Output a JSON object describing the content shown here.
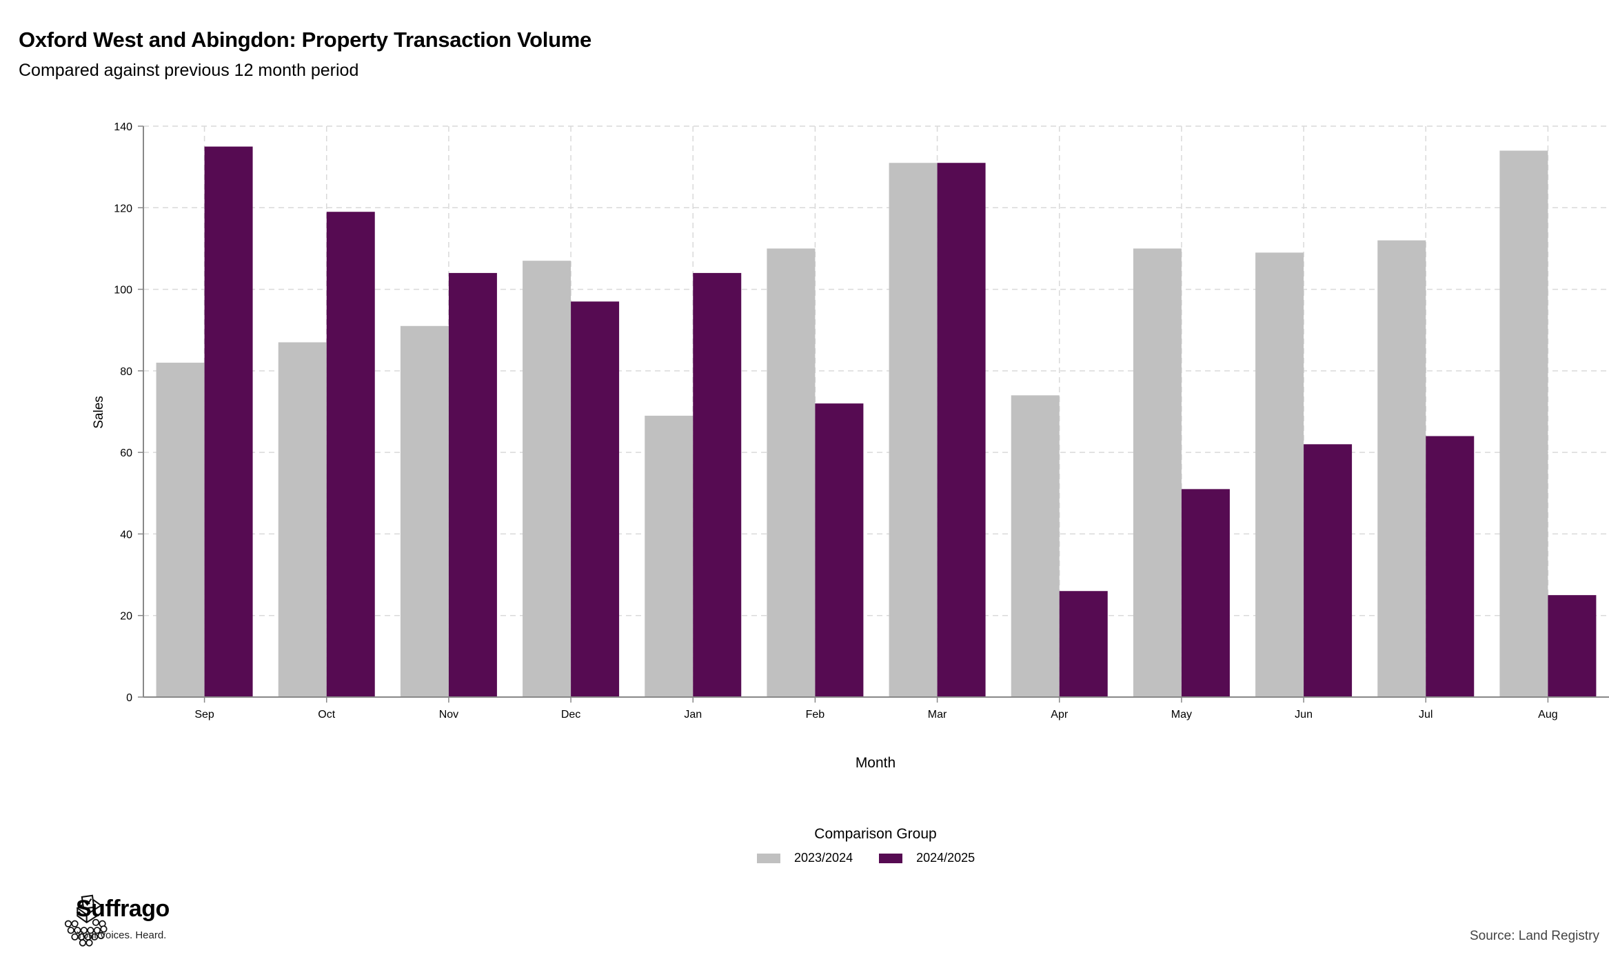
{
  "header": {
    "title": "Oxford West and Abingdon: Property Transaction Volume",
    "subtitle": "Compared against previous 12 month period"
  },
  "chart_data": {
    "type": "bar",
    "xlabel": "Month",
    "ylabel": "Sales",
    "ylim": [
      0,
      140
    ],
    "yticks": [
      0,
      20,
      40,
      60,
      80,
      100,
      120,
      140
    ],
    "grid": true,
    "legend_position": "bottom",
    "legend_title": "Comparison Group",
    "categories": [
      "Sep",
      "Oct",
      "Nov",
      "Dec",
      "Jan",
      "Feb",
      "Mar",
      "Apr",
      "May",
      "Jun",
      "Jul",
      "Aug"
    ],
    "series": [
      {
        "name": "2023/2024",
        "color": "#c0c0c0",
        "values": [
          82,
          87,
          91,
          107,
          69,
          110,
          131,
          74,
          110,
          109,
          112,
          134
        ]
      },
      {
        "name": "2024/2025",
        "color": "#560b52",
        "values": [
          135,
          119,
          104,
          97,
          104,
          72,
          131,
          26,
          51,
          62,
          64,
          25
        ]
      }
    ]
  },
  "footer": {
    "brand": "Suffrago",
    "tagline": "Your voices. Heard.",
    "source": "Source: Land Registry"
  },
  "icons": {
    "logo": "ballot-box-crowd-icon"
  }
}
